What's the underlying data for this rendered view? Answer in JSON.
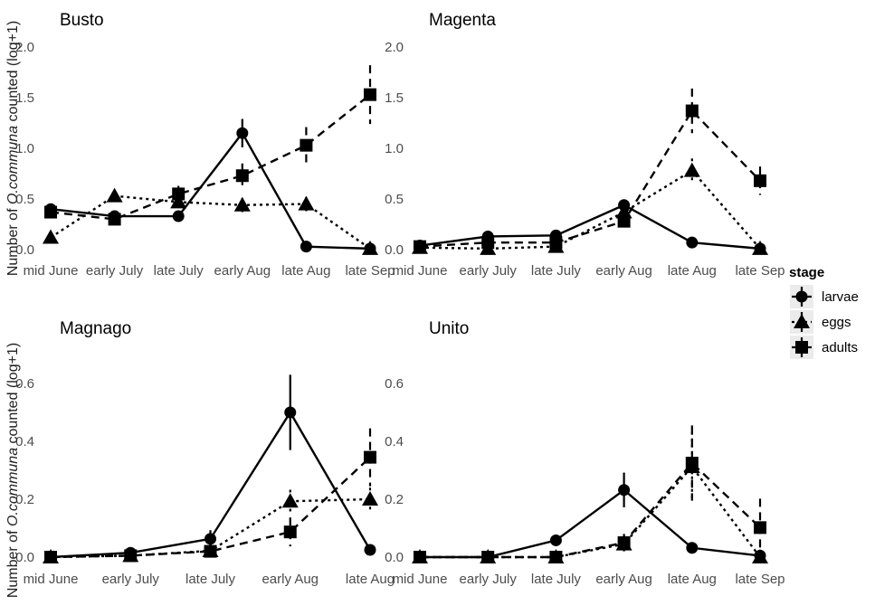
{
  "ylabel": {
    "pre": "Number of ",
    "italic": "O.communa",
    "post": " counted (log+1)"
  },
  "legend": {
    "title": "stage",
    "position": "right",
    "items": [
      {
        "name": "larvae",
        "shape": "circle",
        "line": "solid"
      },
      {
        "name": "eggs",
        "shape": "triangle",
        "line": "dotted"
      },
      {
        "name": "adults",
        "shape": "square",
        "line": "dashed"
      }
    ]
  },
  "chart_data": [
    {
      "type": "line",
      "title": "Busto",
      "categories": [
        "mid June",
        "early July",
        "late July",
        "early Aug",
        "late Aug",
        "late Sep"
      ],
      "ylim": [
        0,
        2.0
      ],
      "yticks": [
        0.0,
        0.5,
        1.0,
        1.5,
        2.0
      ],
      "ytick_labels": [
        "0.0",
        "0.5",
        "1.0",
        "1.5",
        "2.0"
      ],
      "grid": false,
      "series": [
        {
          "name": "larvae",
          "values": [
            0.4,
            0.33,
            0.33,
            1.15,
            0.03,
            0.01
          ],
          "err": [
            0.03,
            0.04,
            0.04,
            0.14,
            0.02,
            0.01
          ]
        },
        {
          "name": "eggs",
          "values": [
            0.12,
            0.53,
            0.47,
            0.44,
            0.45,
            0.01
          ],
          "err": [
            0.02,
            0.05,
            0.05,
            0.07,
            0.07,
            0.01
          ]
        },
        {
          "name": "adults",
          "values": [
            0.37,
            0.3,
            0.55,
            0.73,
            1.03,
            1.53
          ],
          "err": [
            0.04,
            0.04,
            0.08,
            0.12,
            0.18,
            0.29
          ]
        }
      ]
    },
    {
      "type": "line",
      "title": "Magenta",
      "categories": [
        "mid June",
        "early July",
        "late July",
        "early Aug",
        "late Aug",
        "late Sep"
      ],
      "ylim": [
        0,
        2.0
      ],
      "yticks": [
        0.0,
        0.5,
        1.0,
        1.5,
        2.0
      ],
      "ytick_labels": [
        "0.0",
        "0.5",
        "1.0",
        "1.5",
        "2.0"
      ],
      "grid": false,
      "series": [
        {
          "name": "larvae",
          "values": [
            0.04,
            0.13,
            0.14,
            0.44,
            0.07,
            0.01
          ],
          "err": [
            0.01,
            0.02,
            0.02,
            0.05,
            0.01,
            0.01
          ]
        },
        {
          "name": "eggs",
          "values": [
            0.02,
            0.01,
            0.03,
            0.37,
            0.78,
            0.01
          ],
          "err": [
            0.01,
            0.01,
            0.01,
            0.05,
            0.12,
            0.01
          ]
        },
        {
          "name": "adults",
          "values": [
            0.03,
            0.07,
            0.07,
            0.28,
            1.37,
            0.68
          ],
          "err": [
            0.01,
            0.02,
            0.02,
            0.06,
            0.22,
            0.14
          ]
        }
      ]
    },
    {
      "type": "line",
      "title": "Magnago",
      "categories": [
        "mid June",
        "early July",
        "late July",
        "early Aug",
        "late Aug"
      ],
      "ylim": [
        0,
        0.6
      ],
      "yticks": [
        0.0,
        0.2,
        0.4,
        0.6
      ],
      "ytick_labels": [
        "0.0",
        "0.2",
        "0.4",
        "0.6"
      ],
      "grid": false,
      "series": [
        {
          "name": "larvae",
          "values": [
            0.0,
            0.015,
            0.063,
            0.5,
            0.025
          ],
          "err": [
            0.0,
            0.01,
            0.03,
            0.13,
            0.005
          ]
        },
        {
          "name": "eggs",
          "values": [
            0.0,
            0.005,
            0.022,
            0.193,
            0.2
          ],
          "err": [
            0.0,
            0.005,
            0.01,
            0.04,
            0.04
          ]
        },
        {
          "name": "adults",
          "values": [
            0.0,
            0.005,
            0.02,
            0.087,
            0.345
          ],
          "err": [
            0.0,
            0.005,
            0.01,
            0.05,
            0.1
          ]
        }
      ]
    },
    {
      "type": "line",
      "title": "Unito",
      "categories": [
        "mid June",
        "early July",
        "late July",
        "early Aug",
        "late Aug",
        "late Sep"
      ],
      "ylim": [
        0,
        0.6
      ],
      "yticks": [
        0.0,
        0.2,
        0.4,
        0.6
      ],
      "ytick_labels": [
        "0.0",
        "0.2",
        "0.4",
        "0.6"
      ],
      "grid": false,
      "series": [
        {
          "name": "larvae",
          "values": [
            0.0,
            0.0,
            0.058,
            0.232,
            0.032,
            0.005
          ],
          "err": [
            0.0,
            0.0,
            0.02,
            0.06,
            0.01,
            0.005
          ]
        },
        {
          "name": "eggs",
          "values": [
            0.0,
            0.0,
            0.0,
            0.045,
            0.312,
            0.0
          ],
          "err": [
            0.0,
            0.0,
            0.0,
            0.03,
            0.12,
            0.0
          ]
        },
        {
          "name": "adults",
          "values": [
            0.0,
            0.0,
            0.0,
            0.05,
            0.325,
            0.102
          ],
          "err": [
            0.0,
            0.0,
            0.0,
            0.03,
            0.13,
            0.1
          ]
        }
      ]
    }
  ]
}
